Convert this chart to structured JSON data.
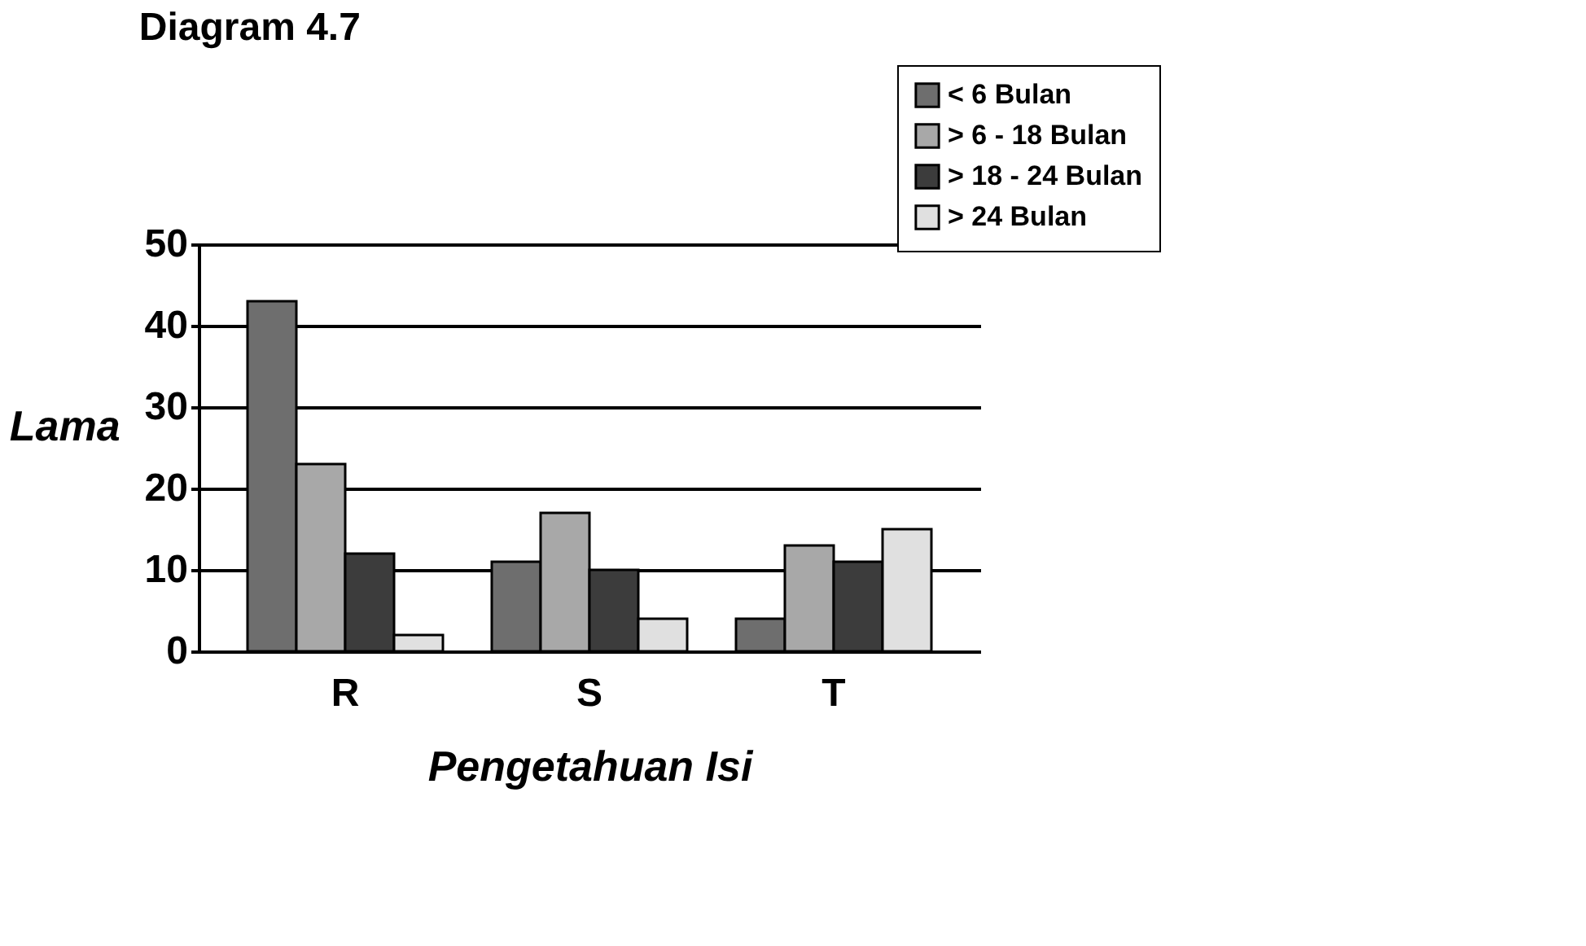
{
  "chart_data": {
    "type": "bar",
    "title": "Diagram 4.7",
    "xlabel": "Pengetahuan Isi",
    "ylabel": "Lama",
    "categories": [
      "R",
      "S",
      "T"
    ],
    "series": [
      {
        "name": "< 6 Bulan",
        "color": "#6e6e6e",
        "values": [
          43,
          11,
          4
        ]
      },
      {
        "name": "> 6 - 18 Bulan",
        "color": "#a8a8a8",
        "values": [
          23,
          17,
          13
        ]
      },
      {
        "name": "> 18 - 24 Bulan",
        "color": "#3c3c3c",
        "values": [
          12,
          10,
          11
        ]
      },
      {
        "name": "> 24 Bulan",
        "color": "#e0e0e0",
        "values": [
          2,
          4,
          15
        ]
      }
    ],
    "ylim": [
      0,
      50
    ],
    "yticks": [
      0,
      10,
      20,
      30,
      40,
      50
    ],
    "grid": "y",
    "legend": "top right"
  }
}
